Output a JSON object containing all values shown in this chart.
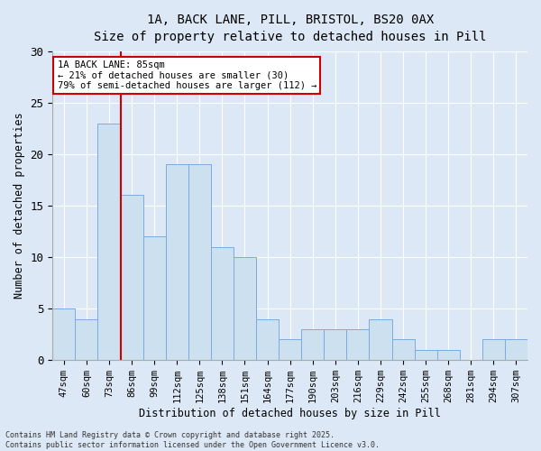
{
  "title_line1": "1A, BACK LANE, PILL, BRISTOL, BS20 0AX",
  "title_line2": "Size of property relative to detached houses in Pill",
  "xlabel": "Distribution of detached houses by size in Pill",
  "ylabel": "Number of detached properties",
  "categories": [
    "47sqm",
    "60sqm",
    "73sqm",
    "86sqm",
    "99sqm",
    "112sqm",
    "125sqm",
    "138sqm",
    "151sqm",
    "164sqm",
    "177sqm",
    "190sqm",
    "203sqm",
    "216sqm",
    "229sqm",
    "242sqm",
    "255sqm",
    "268sqm",
    "281sqm",
    "294sqm",
    "307sqm"
  ],
  "values": [
    5,
    4,
    23,
    16,
    12,
    19,
    19,
    11,
    10,
    4,
    2,
    3,
    3,
    3,
    4,
    2,
    1,
    1,
    0,
    2,
    2
  ],
  "bar_color": "#cce0f0",
  "bar_edge_color": "#7aabe0",
  "vline_x": 3,
  "vline_color": "#cc0000",
  "annotation_text": "1A BACK LANE: 85sqm\n← 21% of detached houses are smaller (30)\n79% of semi-detached houses are larger (112) →",
  "annotation_box_color": "#ffffff",
  "annotation_box_edge": "#cc0000",
  "ylim": [
    0,
    30
  ],
  "yticks": [
    0,
    5,
    10,
    15,
    20,
    25,
    30
  ],
  "background_color": "#dce8f5",
  "footer_text": "Contains HM Land Registry data © Crown copyright and database right 2025.\nContains public sector information licensed under the Open Government Licence v3.0."
}
